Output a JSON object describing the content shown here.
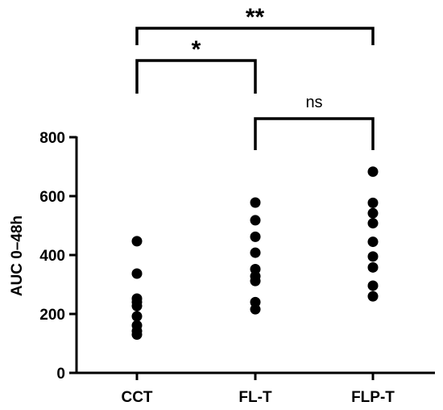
{
  "chart_data": {
    "type": "scatter",
    "ylabel": "AUC 0–48h",
    "ylim": [
      0,
      800
    ],
    "yticks": [
      0,
      200,
      400,
      600,
      800
    ],
    "categories": [
      "CCT",
      "FL-T",
      "FLP-T"
    ],
    "series": [
      {
        "category": "CCT",
        "values": [
          447,
          337,
          252,
          240,
          227,
          192,
          161,
          142,
          130
        ]
      },
      {
        "category": "FL-T",
        "values": [
          578,
          518,
          462,
          408,
          352,
          328,
          312,
          240,
          216
        ]
      },
      {
        "category": "FLP-T",
        "values": [
          683,
          577,
          542,
          508,
          445,
          395,
          358,
          296,
          260
        ]
      }
    ],
    "significance": [
      {
        "from": "CCT",
        "to": "FLP-T",
        "label": "**"
      },
      {
        "from": "CCT",
        "to": "FL-T",
        "label": "*"
      },
      {
        "from": "FL-T",
        "to": "FLP-T",
        "label": "ns"
      }
    ],
    "colors": {
      "points": "#000000",
      "axes": "#000000"
    }
  }
}
